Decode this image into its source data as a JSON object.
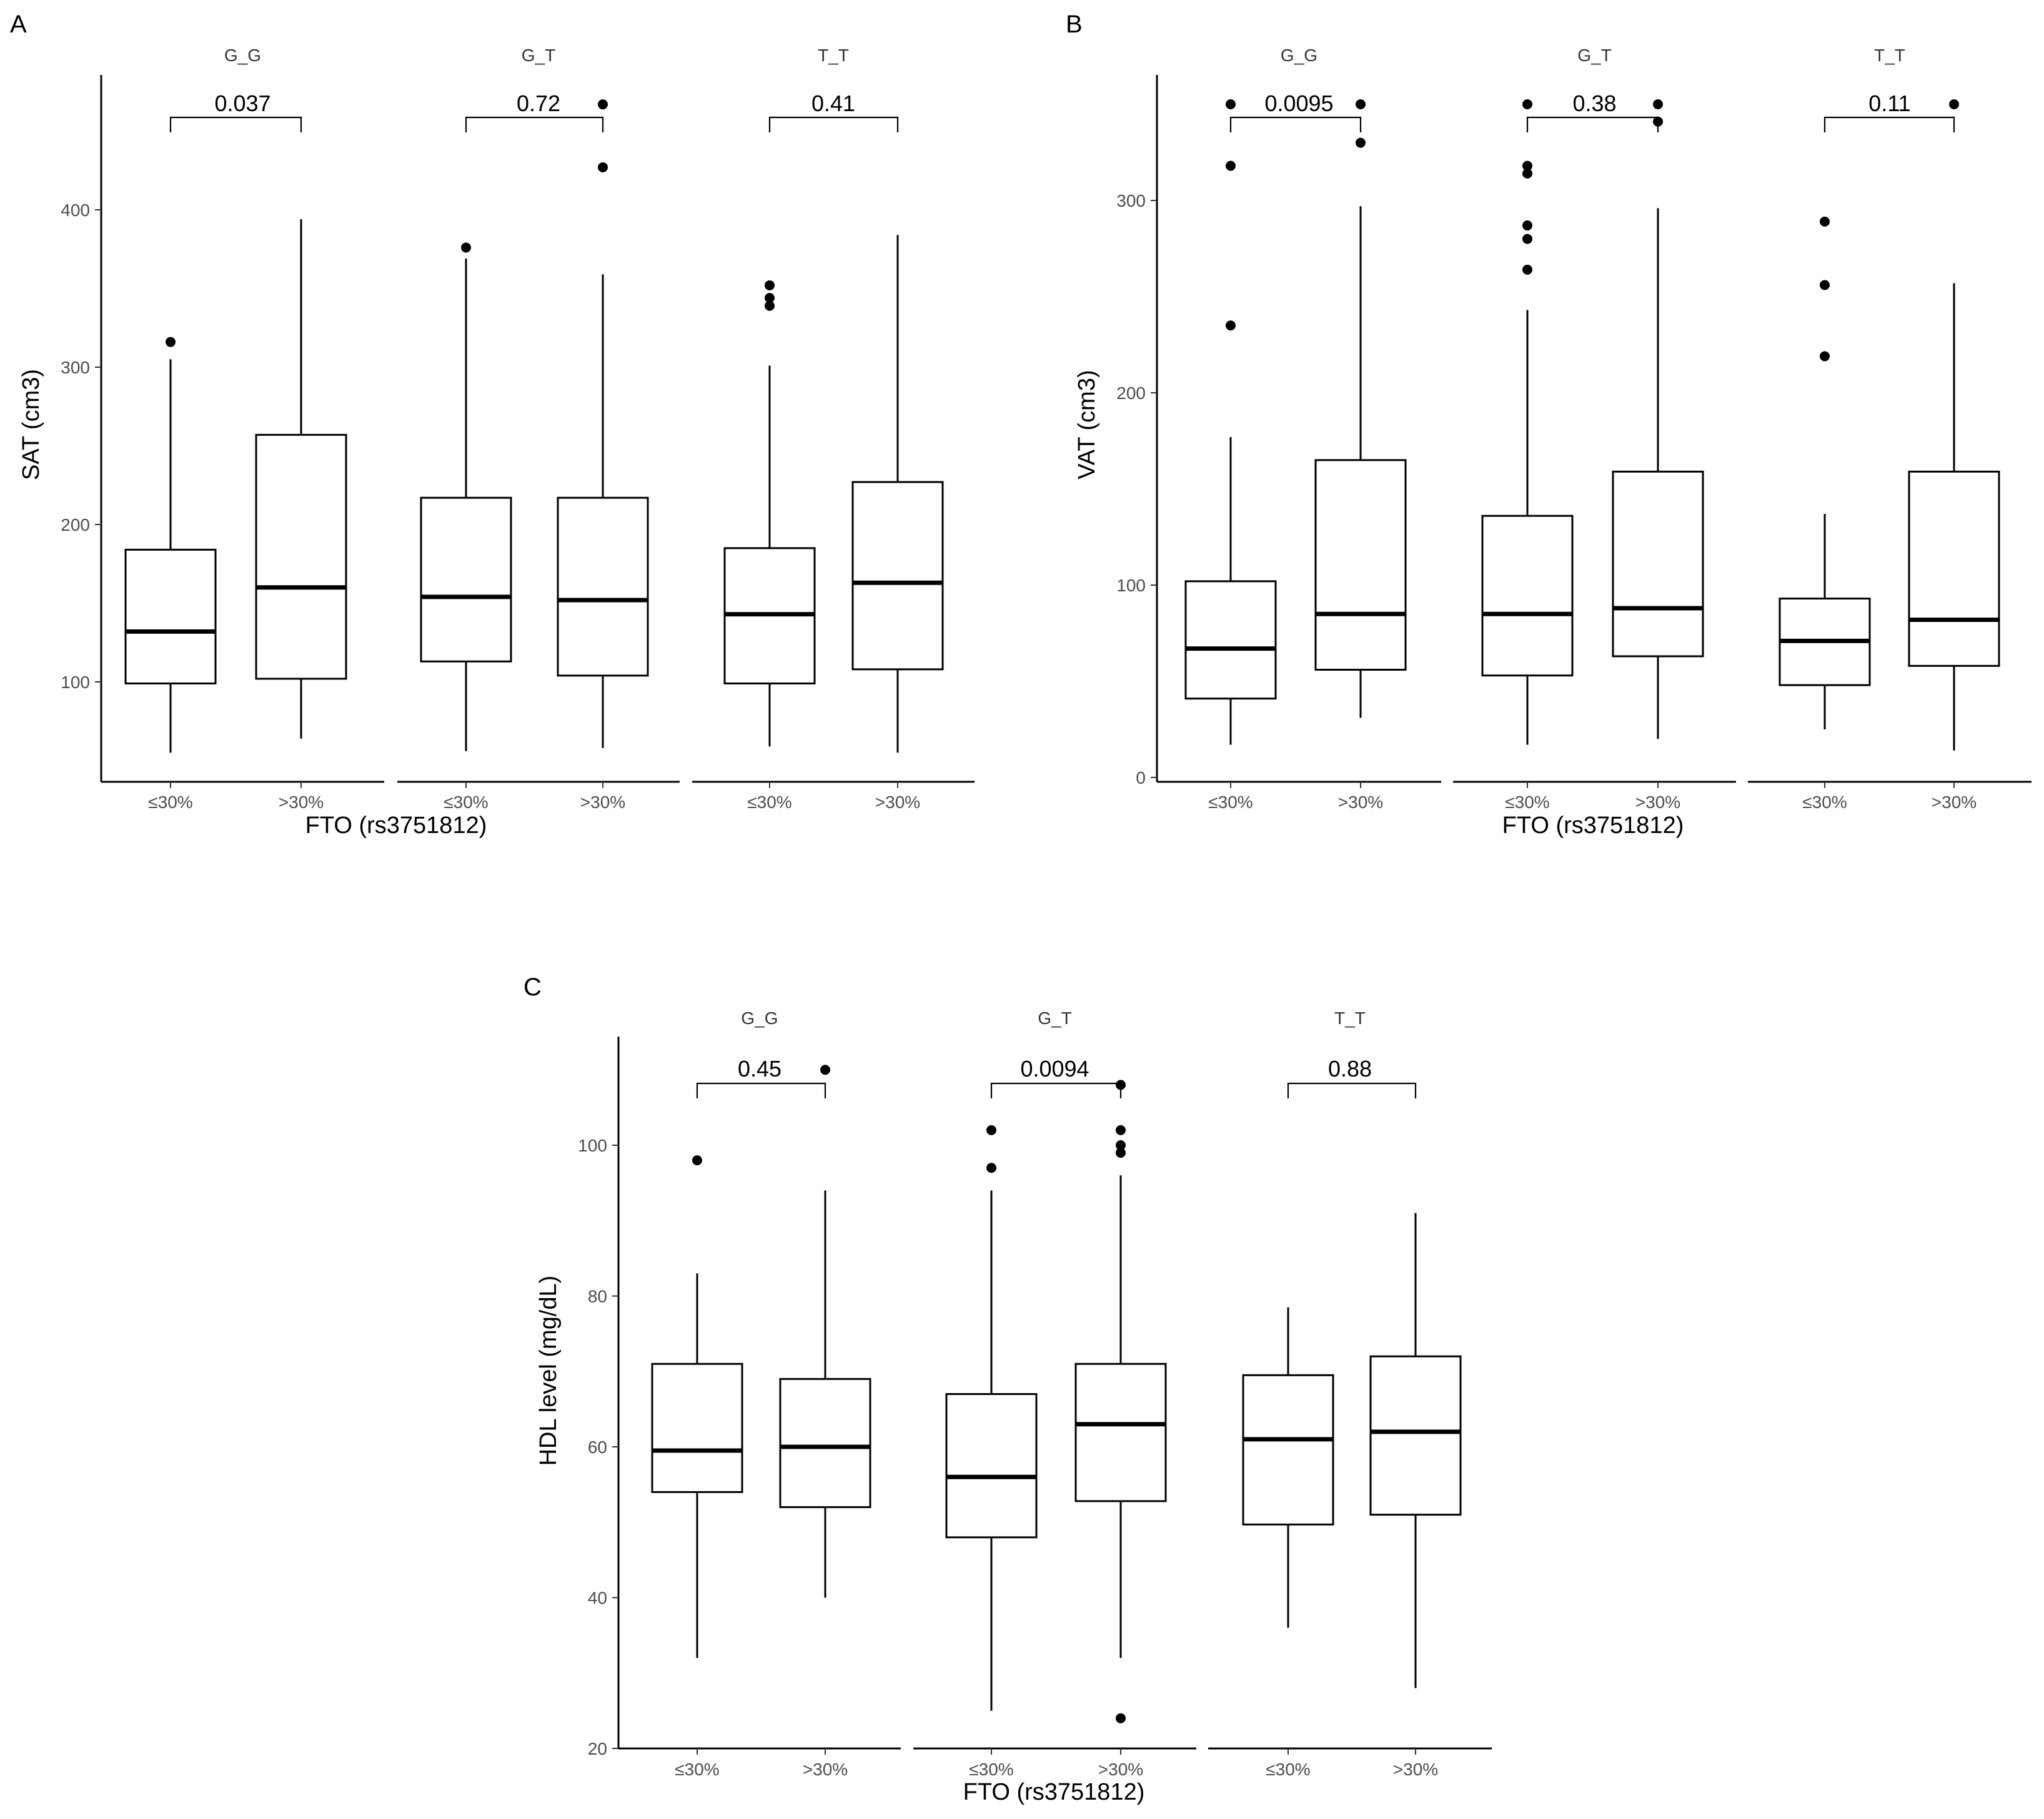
{
  "chart_data": [
    {
      "panel": "A",
      "type": "box",
      "ylabel": "SAT (cm3)",
      "xlabel": "FTO (rs3751812)",
      "ylim": [
        40,
        490
      ],
      "yticks": [
        100,
        200,
        300,
        400
      ],
      "facets": [
        {
          "name": "G_G",
          "pvalue": "0.037",
          "groups": [
            {
              "label": "≤30%",
              "whisker_low": 55,
              "q1": 99,
              "median": 132,
              "q3": 184,
              "whisker_high": 305,
              "outliers": [
                316
              ]
            },
            {
              "label": ">30%",
              "whisker_low": 64,
              "q1": 102,
              "median": 160,
              "q3": 257,
              "whisker_high": 394,
              "outliers": []
            }
          ]
        },
        {
          "name": "G_T",
          "pvalue": "0.72",
          "groups": [
            {
              "label": "≤30%",
              "whisker_low": 56,
              "q1": 113,
              "median": 154,
              "q3": 217,
              "whisker_high": 369,
              "outliers": [
                376
              ]
            },
            {
              "label": ">30%",
              "whisker_low": 58,
              "q1": 104,
              "median": 152,
              "q3": 217,
              "whisker_high": 359,
              "outliers": [
                427,
                467
              ]
            }
          ]
        },
        {
          "name": "T_T",
          "pvalue": "0.41",
          "groups": [
            {
              "label": "≤30%",
              "whisker_low": 59,
              "q1": 99,
              "median": 143,
              "q3": 185,
              "whisker_high": 301,
              "outliers": [
                339,
                344,
                352
              ]
            },
            {
              "label": ">30%",
              "whisker_low": 55,
              "q1": 108,
              "median": 163,
              "q3": 227,
              "whisker_high": 384,
              "outliers": []
            }
          ]
        }
      ]
    },
    {
      "panel": "B",
      "type": "box",
      "ylabel": "VAT (cm3)",
      "xlabel": "FTO (rs3751812)",
      "ylim": [
        -2,
        370
      ],
      "yticks": [
        0,
        100,
        200,
        300
      ],
      "facets": [
        {
          "name": "G_G",
          "pvalue": "0.0095",
          "groups": [
            {
              "label": "≤30%",
              "whisker_low": 17,
              "q1": 41,
              "median": 67,
              "q3": 102,
              "whisker_high": 177,
              "outliers": [
                235,
                318,
                350
              ]
            },
            {
              "label": ">30%",
              "whisker_low": 31,
              "q1": 56,
              "median": 85,
              "q3": 165,
              "whisker_high": 297,
              "outliers": [
                330,
                350
              ]
            }
          ]
        },
        {
          "name": "G_T",
          "pvalue": "0.38",
          "groups": [
            {
              "label": "≤30%",
              "whisker_low": 17,
              "q1": 53,
              "median": 85,
              "q3": 136,
              "whisker_high": 243,
              "outliers": [
                264,
                280,
                287,
                314,
                318,
                350
              ]
            },
            {
              "label": ">30%",
              "whisker_low": 20,
              "q1": 63,
              "median": 88,
              "q3": 159,
              "whisker_high": 296,
              "outliers": [
                341,
                350
              ]
            }
          ]
        },
        {
          "name": "T_T",
          "pvalue": "0.11",
          "groups": [
            {
              "label": "≤30%",
              "whisker_low": 25,
              "q1": 48,
              "median": 71,
              "q3": 93,
              "whisker_high": 137,
              "outliers": [
                219,
                256,
                289
              ]
            },
            {
              "label": ">30%",
              "whisker_low": 14,
              "q1": 58,
              "median": 82,
              "q3": 159,
              "whisker_high": 257,
              "outliers": [
                350
              ]
            }
          ]
        }
      ]
    },
    {
      "panel": "C",
      "type": "box",
      "ylabel": "HDL level (mg/dL)",
      "xlabel": "FTO (rs3751812)",
      "ylim": [
        20,
        116
      ],
      "yticks": [
        20,
        40,
        60,
        80,
        100
      ],
      "facets": [
        {
          "name": "G_G",
          "pvalue": "0.45",
          "groups": [
            {
              "label": "≤30%",
              "whisker_low": 32,
              "q1": 54,
              "median": 59.5,
              "q3": 71,
              "whisker_high": 83,
              "outliers": [
                98
              ]
            },
            {
              "label": ">30%",
              "whisker_low": 40,
              "q1": 52,
              "median": 60,
              "q3": 69,
              "whisker_high": 94,
              "outliers": [
                110
              ]
            }
          ]
        },
        {
          "name": "G_T",
          "pvalue": "0.0094",
          "groups": [
            {
              "label": "≤30%",
              "whisker_low": 25,
              "q1": 48,
              "median": 56,
              "q3": 67,
              "whisker_high": 94,
              "outliers": [
                97,
                102
              ]
            },
            {
              "label": ">30%",
              "whisker_low": 32,
              "q1": 52.8,
              "median": 63,
              "q3": 71,
              "whisker_high": 96,
              "outliers": [
                24,
                99,
                100,
                102,
                108
              ]
            }
          ]
        },
        {
          "name": "T_T",
          "pvalue": "0.88",
          "groups": [
            {
              "label": "≤30%",
              "whisker_low": 36,
              "q1": 49.7,
              "median": 61,
              "q3": 69.5,
              "whisker_high": 78.5,
              "outliers": []
            },
            {
              "label": ">30%",
              "whisker_low": 28,
              "q1": 51,
              "median": 62,
              "q3": 72,
              "whisker_high": 91,
              "outliers": []
            }
          ]
        }
      ]
    }
  ]
}
